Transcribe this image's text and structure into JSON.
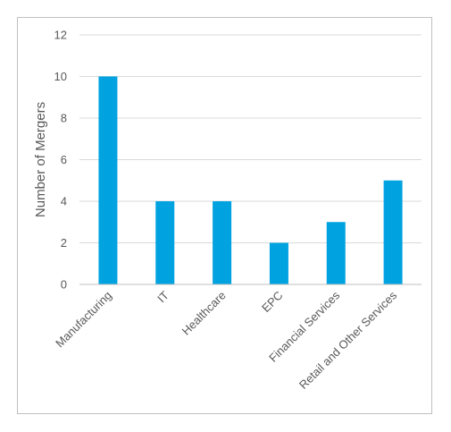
{
  "chart_data": {
    "type": "bar",
    "title": "",
    "xlabel": "",
    "ylabel": "Number of Mergers",
    "categories": [
      "Manufacturing",
      "IT",
      "Healthcare",
      "EPC",
      "Financial Services",
      "Retail and Other Services"
    ],
    "values": [
      10,
      4,
      4,
      2,
      3,
      5
    ],
    "ylim": [
      0,
      12
    ],
    "yticks": [
      "0",
      "2",
      "4",
      "6",
      "8",
      "10",
      "12"
    ],
    "grid": true,
    "legend": "none",
    "bar_color": "#00a3e0",
    "grid_color": "#d9d9d9",
    "axis_color": "#bfbfbf"
  }
}
